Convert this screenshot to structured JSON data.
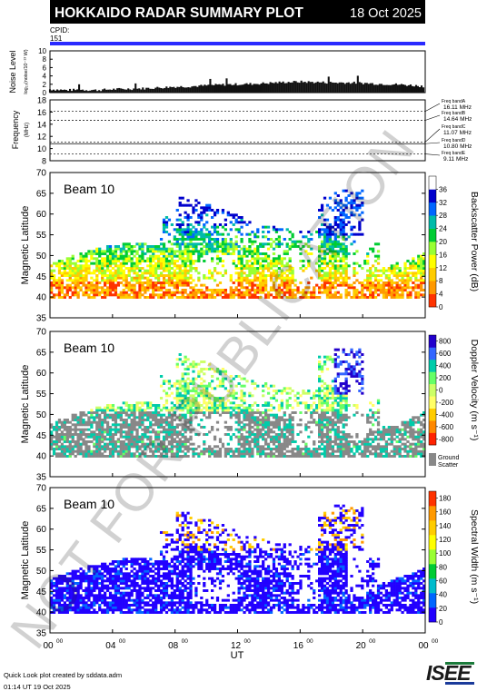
{
  "header": {
    "title": "HOKKAIDO RADAR SUMMARY PLOT",
    "date": "18 Oct 2025",
    "cpid_label": "CPID:",
    "cpid_value": "151"
  },
  "watermark": "NOT FOR PUBLICATION",
  "footer": {
    "line1": "Quick Look plot created by sddata.adm",
    "line2": "01:14 UT 19 Oct 2025",
    "logo_text": "ISEE"
  },
  "colors": {
    "header_bg": "#000000",
    "cpid_bar": "#2a2aff",
    "ground_scatter": "#888888"
  },
  "chart_data": [
    {
      "type": "area",
      "name": "noise",
      "ylabel": "Noise Level",
      "ylabel_sub": "log₁₀(noise/10⁻¹³ W)",
      "ylim": [
        0,
        10
      ],
      "yticks": [
        0,
        2,
        4,
        6,
        8,
        10
      ],
      "x_hours": [
        0,
        1,
        2,
        3,
        4,
        5,
        6,
        7,
        8,
        9,
        10,
        11,
        12,
        13,
        14,
        15,
        16,
        17,
        18,
        19,
        20,
        21,
        22,
        23,
        24
      ],
      "values": [
        0.8,
        0.6,
        0.7,
        0.6,
        0.8,
        0.9,
        1.0,
        1.2,
        1.4,
        1.5,
        1.7,
        1.9,
        2.0,
        2.1,
        2.3,
        2.5,
        2.6,
        2.5,
        2.4,
        2.4,
        2.3,
        2.1,
        2.0,
        1.8,
        1.5
      ]
    },
    {
      "type": "line",
      "name": "frequency",
      "ylabel": "Frequency",
      "ylabel_sub": "(MHz)",
      "ylim": [
        8,
        18
      ],
      "yticks": [
        8,
        10,
        12,
        14,
        16,
        18
      ],
      "bands": [
        {
          "label": "Freq bandA",
          "value_text": "16.11 MHz",
          "value": 16.11
        },
        {
          "label": "Freq bandB",
          "value_text": "14.64 MHz",
          "value": 14.64
        },
        {
          "label": "Freq bandC",
          "value_text": "11.07 MHz",
          "value": 11.07
        },
        {
          "label": "Freq bandD",
          "value_text": "10.80 MHz",
          "value": 10.8
        },
        {
          "label": "Freq bandE",
          "value_text": "9.11 MHz",
          "value": 9.11
        }
      ]
    },
    {
      "type": "heatmap",
      "name": "power",
      "beam_label": "Beam 10",
      "ylabel": "Magnetic Latitude",
      "ylim": [
        35,
        70
      ],
      "yticks": [
        35,
        40,
        45,
        50,
        55,
        60,
        65,
        70
      ],
      "colorbar_label": "Backscatter Power (dB)",
      "colorbar_ticks": [
        0,
        4,
        8,
        12,
        16,
        20,
        24,
        28,
        32,
        36
      ],
      "colorbar_range": [
        0,
        40
      ],
      "colorbar_colors": [
        "#ff3300",
        "#ff9900",
        "#ffcc00",
        "#ffff00",
        "#99ff33",
        "#00cc33",
        "#00bbaa",
        "#0066ff",
        "#0000cc",
        "#ffffff"
      ]
    },
    {
      "type": "heatmap",
      "name": "velocity",
      "beam_label": "Beam 10",
      "ylabel": "Magnetic Latitude",
      "ylim": [
        35,
        70
      ],
      "yticks": [
        35,
        40,
        45,
        50,
        55,
        60,
        65,
        70
      ],
      "colorbar_label": "Doppler Velocity (m s⁻¹)",
      "colorbar_ticks": [
        -800,
        -600,
        -400,
        -200,
        0,
        200,
        400,
        600,
        800
      ],
      "colorbar_range": [
        -900,
        900
      ],
      "colorbar_colors": [
        "#ff2200",
        "#ff8800",
        "#ffcc00",
        "#ffff66",
        "#ccff66",
        "#66ff66",
        "#00ccaa",
        "#3366ff",
        "#2200cc"
      ],
      "ground_label": [
        "Ground",
        "Scatter"
      ]
    },
    {
      "type": "heatmap",
      "name": "width",
      "beam_label": "Beam 10",
      "ylabel": "Magnetic Latitude",
      "ylim": [
        35,
        70
      ],
      "yticks": [
        35,
        40,
        45,
        50,
        55,
        60,
        65,
        70
      ],
      "colorbar_label": "Spectral Width (m s⁻¹)",
      "colorbar_ticks": [
        0,
        20,
        40,
        60,
        80,
        100,
        120,
        140,
        160,
        180
      ],
      "colorbar_range": [
        0,
        190
      ],
      "colorbar_colors": [
        "#2200ff",
        "#0066ff",
        "#00bbcc",
        "#00cc33",
        "#99ff33",
        "#ffff00",
        "#ffcc00",
        "#ff9900",
        "#ff3300"
      ]
    }
  ],
  "x_axis": {
    "label": "UT",
    "ticks": [
      {
        "hour": 0,
        "major": "00",
        "minor": "00"
      },
      {
        "hour": 4,
        "major": "04",
        "minor": "00"
      },
      {
        "hour": 8,
        "major": "08",
        "minor": "00"
      },
      {
        "hour": 12,
        "major": "12",
        "minor": "00"
      },
      {
        "hour": 16,
        "major": "16",
        "minor": "00"
      },
      {
        "hour": 20,
        "major": "20",
        "minor": "00"
      },
      {
        "hour": 24,
        "major": "00",
        "minor": "00"
      }
    ]
  }
}
